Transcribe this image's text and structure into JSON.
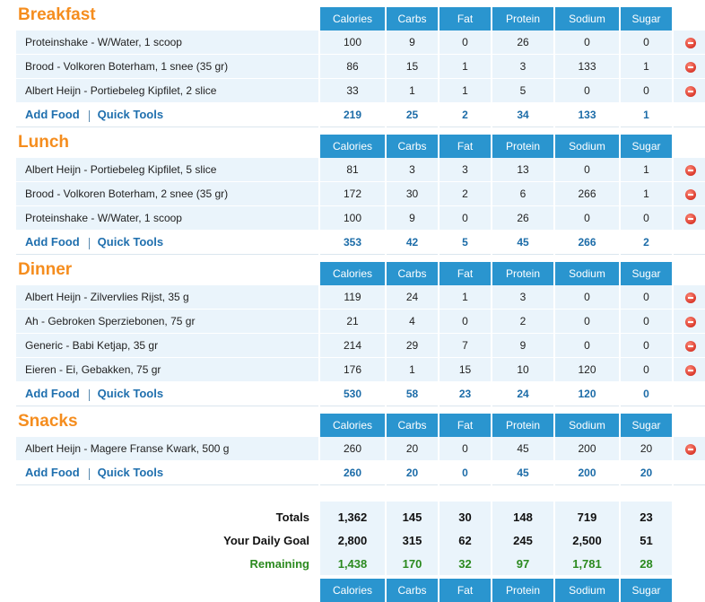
{
  "columns": [
    "Calories",
    "Carbs",
    "Fat",
    "Protein",
    "Sodium",
    "Sugar"
  ],
  "links": {
    "add_food": "Add Food",
    "quick_tools": "Quick Tools"
  },
  "meals": [
    {
      "title": "Breakfast",
      "items": [
        {
          "name": "Proteinshake - W/Water, 1 scoop",
          "values": [
            "100",
            "9",
            "0",
            "26",
            "0",
            "0"
          ]
        },
        {
          "name": "Brood - Volkoren Boterham, 1 snee (35 gr)",
          "values": [
            "86",
            "15",
            "1",
            "3",
            "133",
            "1"
          ]
        },
        {
          "name": "Albert Heijn - Portiebeleg Kipfilet, 2 slice",
          "values": [
            "33",
            "1",
            "1",
            "5",
            "0",
            "0"
          ]
        }
      ],
      "totals": [
        "219",
        "25",
        "2",
        "34",
        "133",
        "1"
      ]
    },
    {
      "title": "Lunch",
      "items": [
        {
          "name": "Albert Heijn - Portiebeleg Kipfilet, 5 slice",
          "values": [
            "81",
            "3",
            "3",
            "13",
            "0",
            "1"
          ]
        },
        {
          "name": "Brood - Volkoren Boterham, 2 snee (35 gr)",
          "values": [
            "172",
            "30",
            "2",
            "6",
            "266",
            "1"
          ]
        },
        {
          "name": "Proteinshake - W/Water, 1 scoop",
          "values": [
            "100",
            "9",
            "0",
            "26",
            "0",
            "0"
          ]
        }
      ],
      "totals": [
        "353",
        "42",
        "5",
        "45",
        "266",
        "2"
      ]
    },
    {
      "title": "Dinner",
      "items": [
        {
          "name": "Albert Heijn - Zilvervlies Rijst, 35 g",
          "values": [
            "119",
            "24",
            "1",
            "3",
            "0",
            "0"
          ]
        },
        {
          "name": "Ah - Gebroken Sperziebonen, 75 gr",
          "values": [
            "21",
            "4",
            "0",
            "2",
            "0",
            "0"
          ]
        },
        {
          "name": "Generic - Babi Ketjap, 35 gr",
          "values": [
            "214",
            "29",
            "7",
            "9",
            "0",
            "0"
          ]
        },
        {
          "name": "Eieren - Ei, Gebakken, 75 gr",
          "values": [
            "176",
            "1",
            "15",
            "10",
            "120",
            "0"
          ]
        }
      ],
      "totals": [
        "530",
        "58",
        "23",
        "24",
        "120",
        "0"
      ]
    },
    {
      "title": "Snacks",
      "items": [
        {
          "name": "Albert Heijn - Magere Franse Kwark, 500 g",
          "values": [
            "260",
            "20",
            "0",
            "45",
            "200",
            "20"
          ]
        }
      ],
      "totals": [
        "260",
        "20",
        "0",
        "45",
        "200",
        "20"
      ]
    }
  ],
  "summary": {
    "totals": {
      "label": "Totals",
      "values": [
        "1,362",
        "145",
        "30",
        "148",
        "719",
        "23"
      ]
    },
    "goal": {
      "label": "Your Daily Goal",
      "values": [
        "2,800",
        "315",
        "62",
        "245",
        "2,500",
        "51"
      ]
    },
    "remaining": {
      "label": "Remaining",
      "values": [
        "1,438",
        "170",
        "32",
        "97",
        "1,781",
        "28"
      ]
    }
  },
  "icons": {
    "delete": "remove-icon"
  },
  "colors": {
    "header_bg": "#2a95cf",
    "meal_title": "#f58d1e",
    "link": "#1f6fae",
    "remaining": "#2b8a1f",
    "row_bg": "#eaf4fb"
  }
}
